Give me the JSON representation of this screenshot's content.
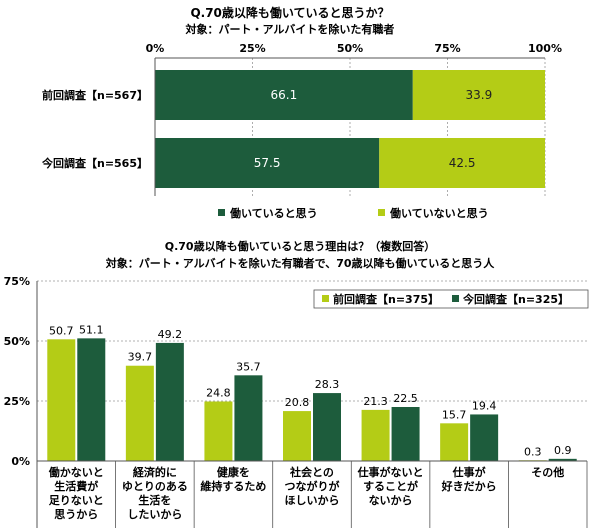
{
  "colors": {
    "dark": "#1d5c3c",
    "light": "#b4cc16",
    "grid": "#999999",
    "axis": "#555555"
  },
  "chart_data": [
    {
      "type": "bar",
      "orientation": "horizontal",
      "stacked": true,
      "title": "Q.70歳以降も働いていると思うか？",
      "subtitle": "対象：パート・アルバイトを除いた有職者",
      "categories": [
        "前回調査【n=567】",
        "今回調査【n=565】"
      ],
      "series": [
        {
          "name": "働いていると思う",
          "values": [
            66.1,
            57.5
          ],
          "labels": [
            "66.1",
            "57.5"
          ]
        },
        {
          "name": "働いていないと思う",
          "values": [
            33.9,
            42.5
          ],
          "labels": [
            "33.9",
            "42.5"
          ]
        }
      ],
      "xlim": [
        0,
        100
      ],
      "ticks": [
        "0%",
        "25%",
        "50%",
        "75%",
        "100%"
      ],
      "legend": "bottom"
    },
    {
      "type": "bar",
      "orientation": "vertical",
      "title": "Q.70歳以降も働いていると思う理由は？（複数回答）",
      "subtitle": "対象：パート・アルバイトを除いた有職者で、70歳以降も働いていると思う人",
      "categories": [
        [
          "働かないと",
          "生活費が",
          "足りないと",
          "思うから"
        ],
        [
          "経済的に",
          "ゆとりのある",
          "生活を",
          "したいから"
        ],
        [
          "健康を",
          "維持するため"
        ],
        [
          "社会との",
          "つながりが",
          "ほしいから"
        ],
        [
          "仕事がないと",
          "することが",
          "ないから"
        ],
        [
          "仕事が",
          "好きだから"
        ],
        [
          "その他"
        ]
      ],
      "series": [
        {
          "name": "前回調査【n=375】",
          "values": [
            50.7,
            39.7,
            24.8,
            20.8,
            21.3,
            15.7,
            0.3
          ],
          "labels": [
            "50.7",
            "39.7",
            "24.8",
            "20.8",
            "21.3",
            "15.7",
            "0.3"
          ]
        },
        {
          "name": "今回調査【n=325】",
          "values": [
            51.1,
            49.2,
            35.7,
            28.3,
            22.5,
            19.4,
            0.9
          ],
          "labels": [
            "51.1",
            "49.2",
            "35.7",
            "28.3",
            "22.5",
            "19.4",
            "0.9"
          ]
        }
      ],
      "ylim": [
        0,
        75
      ],
      "ticks": [
        "0%",
        "25%",
        "50%",
        "75%"
      ],
      "legend": "top-right"
    }
  ]
}
